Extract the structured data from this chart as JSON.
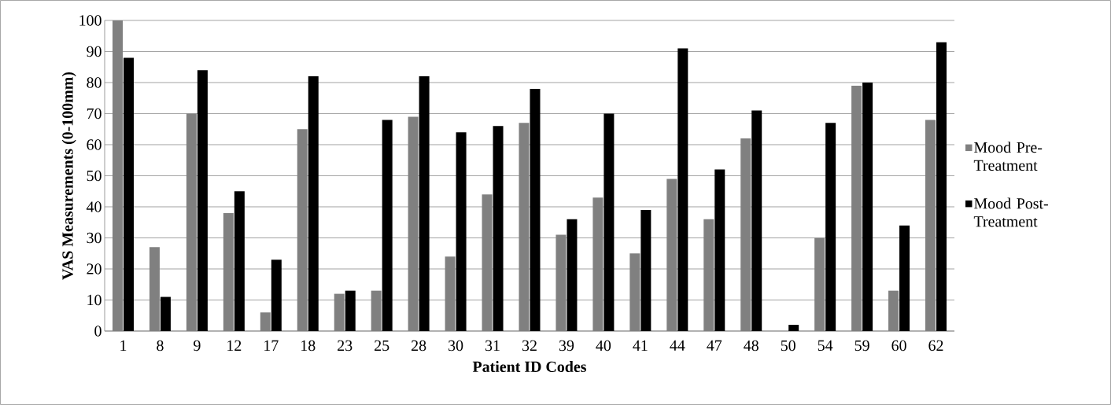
{
  "chart_data": {
    "type": "bar",
    "xlabel": "Patient ID Codes",
    "ylabel": "VAS Measurements (0-100mm)",
    "categories": [
      "1",
      "8",
      "9",
      "12",
      "17",
      "18",
      "23",
      "25",
      "28",
      "30",
      "31",
      "32",
      "39",
      "40",
      "41",
      "44",
      "47",
      "48",
      "50",
      "54",
      "59",
      "60",
      "62"
    ],
    "series": [
      {
        "name": "Mood Pre-Treatment",
        "color": "#808080",
        "values": [
          100,
          27,
          70,
          38,
          6,
          65,
          12,
          13,
          69,
          24,
          44,
          67,
          31,
          43,
          25,
          49,
          36,
          62,
          0,
          30,
          79,
          13,
          68
        ]
      },
      {
        "name": "Mood Post-Treatment",
        "color": "#000000",
        "values": [
          88,
          11,
          84,
          45,
          23,
          82,
          13,
          68,
          82,
          64,
          66,
          78,
          36,
          70,
          39,
          91,
          52,
          71,
          2,
          67,
          80,
          34,
          93
        ]
      }
    ],
    "ylim": [
      0,
      100
    ],
    "yticks": [
      0,
      10,
      20,
      30,
      40,
      50,
      60,
      70,
      80,
      90,
      100
    ],
    "grid": "y",
    "legend": "right"
  }
}
